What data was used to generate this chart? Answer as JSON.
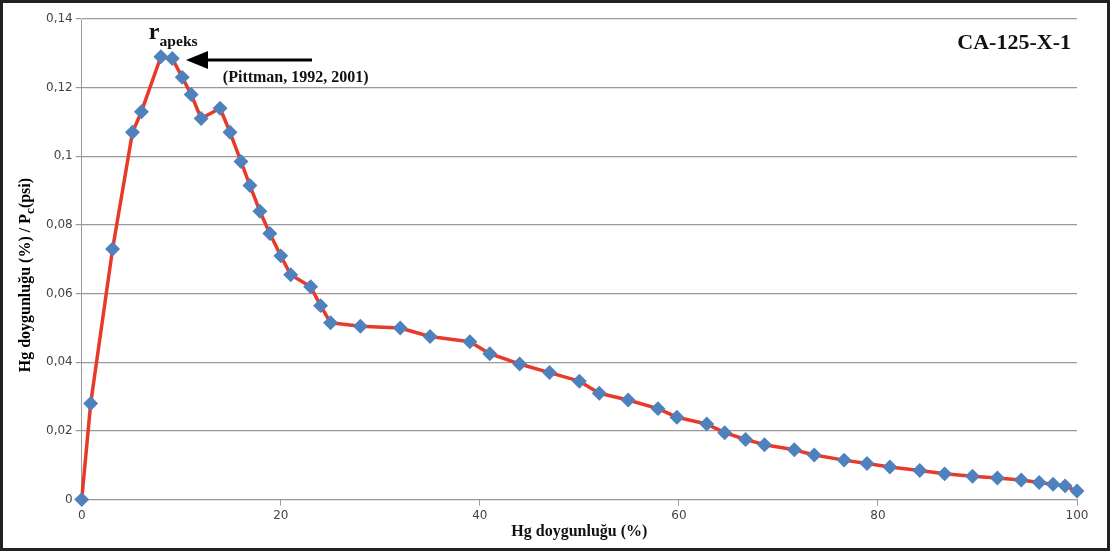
{
  "chart_data": {
    "type": "line",
    "title": "CA-125-X-1",
    "xlabel": "Hg doygunluğu (%)",
    "ylabel": "Hg doygunluğu (%) / P$_{c}$(psi)",
    "x": [
      0,
      0.9,
      3.1,
      5.1,
      6.0,
      7.95,
      9.1,
      10.1,
      11.0,
      12.0,
      13.9,
      14.9,
      16.0,
      16.9,
      17.9,
      18.9,
      20.0,
      21.0,
      23.0,
      24.0,
      25.0,
      28.0,
      32.0,
      35.0,
      39.0,
      41.0,
      44.0,
      47.0,
      50.0,
      52.0,
      54.9,
      57.9,
      59.8,
      62.8,
      64.6,
      66.7,
      68.6,
      71.6,
      73.6,
      76.6,
      78.9,
      81.2,
      84.2,
      86.7,
      89.5,
      92.0,
      94.4,
      96.2,
      97.6,
      98.8,
      100
    ],
    "series": [
      {
        "color": "#4f81bd",
        "values": [
          0,
          0.028,
          0.073,
          0.107,
          0.113,
          0.129,
          0.1285,
          0.123,
          0.118,
          0.111,
          0.114,
          0.107,
          0.0985,
          0.0915,
          0.084,
          0.0775,
          0.071,
          0.0655,
          0.062,
          0.0565,
          0.0515,
          0.0505,
          0.05,
          0.0475,
          0.046,
          0.0425,
          0.0395,
          0.037,
          0.0345,
          0.031,
          0.029,
          0.0265,
          0.024,
          0.022,
          0.0195,
          0.0175,
          0.016,
          0.0145,
          0.013,
          0.0115,
          0.0105,
          0.0095,
          0.0085,
          0.0075,
          0.0068,
          0.0063,
          0.0057,
          0.005,
          0.0045,
          0.004,
          0.0025
        ]
      }
    ],
    "xlim": [
      0,
      100
    ],
    "xticks": [
      0,
      20,
      40,
      60,
      80,
      100
    ],
    "ylim": [
      0,
      0.14
    ],
    "yticks": [
      {
        "value": 0,
        "label": "0"
      },
      {
        "value": 0.02,
        "label": "0,02"
      },
      {
        "value": 0.04,
        "label": "0,04"
      },
      {
        "value": 0.06,
        "label": "0,06"
      },
      {
        "value": 0.08,
        "label": "0,08"
      },
      {
        "value": 0.1,
        "label": "0,1"
      },
      {
        "value": 0.12,
        "label": "0,12"
      },
      {
        "value": 0.14,
        "label": "0,14"
      }
    ],
    "grid": "y",
    "legend": false,
    "marker": "diamond",
    "line_style": "solid",
    "annotations": [
      {
        "text": "r$_{apeks}$",
        "x": 7.95,
        "y": 0.129
      },
      "(Pittman, 1992, 2001)"
    ]
  }
}
